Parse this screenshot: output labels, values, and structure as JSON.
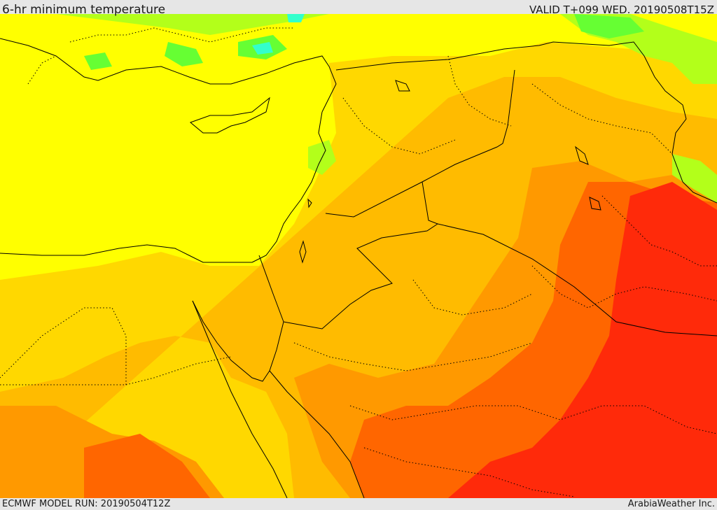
{
  "header": {
    "title": "6-hr minimum temperature",
    "valid_label": "VALID T+099 WED. 20190508T15Z"
  },
  "footer": {
    "model_run": "ECMWF MODEL RUN: 20190504T12Z",
    "credit": "ArabiaWeather Inc."
  },
  "map": {
    "field": "minimum temperature",
    "color_bands": [
      "#00ff66",
      "#66ff33",
      "#b3ff1a",
      "#ffff00",
      "#ffdd00",
      "#ffbb00",
      "#ff9900",
      "#ff6600",
      "#ff2200"
    ],
    "land_border_color": "#000000"
  }
}
